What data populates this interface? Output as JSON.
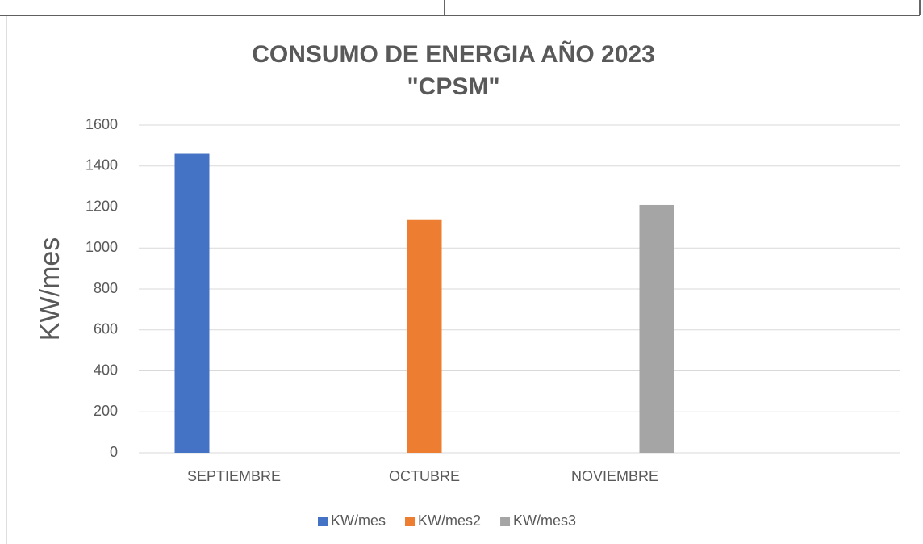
{
  "chart_data": {
    "type": "bar",
    "title": "CONSUMO DE ENERGIA AÑO 2023",
    "subtitle": "\"CPSM\"",
    "y_label": "KW/mes",
    "categories": [
      "SEPTIEMBRE",
      "OCTUBRE",
      "NOVIEMBRE",
      null
    ],
    "series": [
      {
        "name": "KW/mes",
        "color": "#4472c4",
        "values": [
          1460,
          null,
          null,
          null
        ]
      },
      {
        "name": "KW/mes2",
        "color": "#ed7d31",
        "values": [
          null,
          1140,
          null,
          null
        ]
      },
      {
        "name": "KW/mes3",
        "color": "#a5a5a5",
        "values": [
          null,
          null,
          1210,
          null
        ]
      }
    ],
    "ylim": [
      0,
      1600
    ],
    "yticks": [
      0,
      200,
      400,
      600,
      800,
      1000,
      1200,
      1400,
      1600
    ],
    "grid": true,
    "legend": "bottom"
  }
}
